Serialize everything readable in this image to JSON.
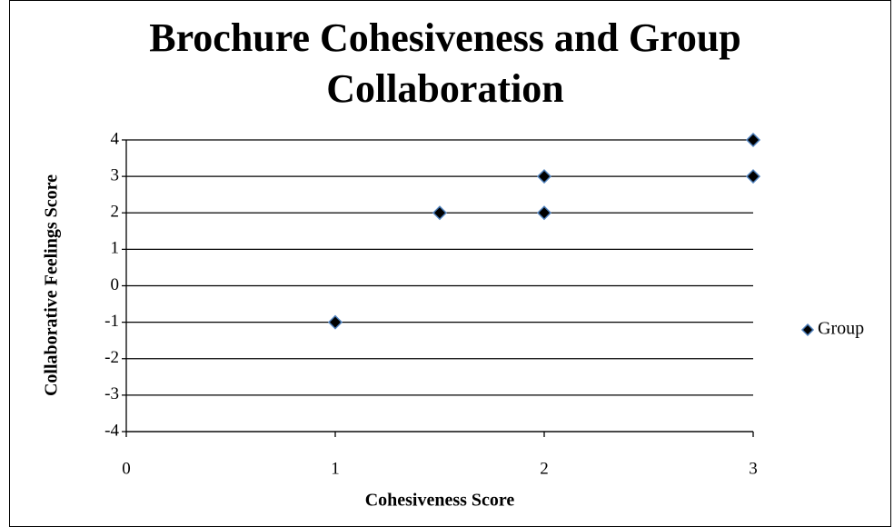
{
  "chart_data": {
    "type": "scatter",
    "title": "Brochure Cohesiveness and Group Collaboration",
    "x_label": "Cohesiveness Score",
    "y_label": "Collaborative Feelings Score",
    "series": [
      {
        "name": "Group",
        "color": "#000000",
        "x": [
          1,
          1.5,
          2,
          2,
          3,
          3
        ],
        "values": [
          -1,
          2,
          3,
          2,
          4,
          3
        ]
      }
    ],
    "xlim": [
      0,
      3
    ],
    "xticks": [
      0,
      1,
      2,
      3
    ],
    "ylim": [
      -4,
      4
    ],
    "yticks": [
      -4,
      -3,
      -2,
      -1,
      0,
      1,
      2,
      3,
      4
    ],
    "grid": true,
    "legend": "right"
  }
}
